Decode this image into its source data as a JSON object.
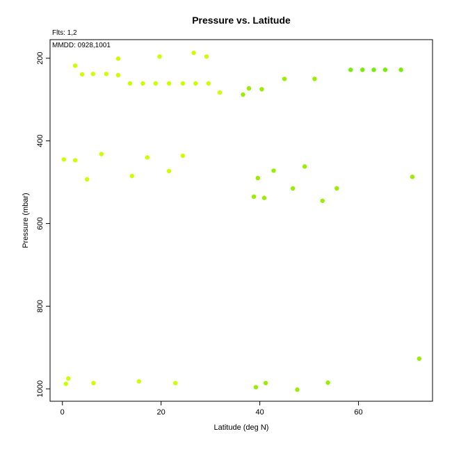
{
  "chart_data": {
    "type": "scatter",
    "title": "Pressure vs. Latitude",
    "xlabel": "Latitude (deg N)",
    "ylabel": "Pressure (mbar)",
    "annotations": [
      "Flts: 1,2",
      "MMDD: 0928,1001"
    ],
    "xlim": [
      -2.5,
      75
    ],
    "ylim": [
      1030,
      155
    ],
    "y_inverted": true,
    "x_ticks": [
      0,
      20,
      40,
      60
    ],
    "y_ticks": [
      200,
      400,
      600,
      800,
      1000
    ],
    "grid": false,
    "colors": {
      "yellow": "#ccff00",
      "lime": "#99ee00",
      "green": "#77ee00"
    },
    "points": [
      {
        "x": 0.3,
        "y": 445,
        "c": "yellow"
      },
      {
        "x": 2.6,
        "y": 447,
        "c": "yellow"
      },
      {
        "x": 5.0,
        "y": 493,
        "c": "yellow"
      },
      {
        "x": 7.9,
        "y": 432,
        "c": "yellow"
      },
      {
        "x": 14.1,
        "y": 485,
        "c": "yellow"
      },
      {
        "x": 17.2,
        "y": 440,
        "c": "yellow"
      },
      {
        "x": 21.6,
        "y": 473,
        "c": "yellow"
      },
      {
        "x": 24.4,
        "y": 436,
        "c": "yellow"
      },
      {
        "x": 2.6,
        "y": 218,
        "c": "yellow"
      },
      {
        "x": 4.0,
        "y": 239,
        "c": "yellow"
      },
      {
        "x": 6.2,
        "y": 238,
        "c": "yellow"
      },
      {
        "x": 8.9,
        "y": 238,
        "c": "yellow"
      },
      {
        "x": 11.3,
        "y": 201,
        "c": "yellow"
      },
      {
        "x": 11.3,
        "y": 241,
        "c": "yellow"
      },
      {
        "x": 13.7,
        "y": 261,
        "c": "yellow"
      },
      {
        "x": 16.3,
        "y": 261,
        "c": "yellow"
      },
      {
        "x": 18.9,
        "y": 261,
        "c": "yellow"
      },
      {
        "x": 19.7,
        "y": 196,
        "c": "yellow"
      },
      {
        "x": 21.6,
        "y": 261,
        "c": "yellow"
      },
      {
        "x": 24.4,
        "y": 261,
        "c": "yellow"
      },
      {
        "x": 26.6,
        "y": 187,
        "c": "yellow"
      },
      {
        "x": 27.0,
        "y": 261,
        "c": "yellow"
      },
      {
        "x": 29.2,
        "y": 196,
        "c": "yellow"
      },
      {
        "x": 29.6,
        "y": 261,
        "c": "yellow"
      },
      {
        "x": 31.9,
        "y": 283,
        "c": "yellow"
      },
      {
        "x": 0.7,
        "y": 988,
        "c": "yellow"
      },
      {
        "x": 1.2,
        "y": 975,
        "c": "yellow"
      },
      {
        "x": 6.3,
        "y": 986,
        "c": "yellow"
      },
      {
        "x": 15.5,
        "y": 982,
        "c": "yellow"
      },
      {
        "x": 22.9,
        "y": 986,
        "c": "yellow"
      },
      {
        "x": 36.6,
        "y": 288,
        "c": "lime"
      },
      {
        "x": 37.8,
        "y": 273,
        "c": "lime"
      },
      {
        "x": 40.4,
        "y": 275,
        "c": "lime"
      },
      {
        "x": 45.0,
        "y": 250,
        "c": "lime"
      },
      {
        "x": 51.1,
        "y": 250,
        "c": "lime"
      },
      {
        "x": 38.8,
        "y": 535,
        "c": "lime"
      },
      {
        "x": 39.6,
        "y": 490,
        "c": "lime"
      },
      {
        "x": 40.9,
        "y": 538,
        "c": "lime"
      },
      {
        "x": 42.8,
        "y": 472,
        "c": "lime"
      },
      {
        "x": 46.7,
        "y": 515,
        "c": "lime"
      },
      {
        "x": 49.1,
        "y": 462,
        "c": "lime"
      },
      {
        "x": 52.7,
        "y": 545,
        "c": "lime"
      },
      {
        "x": 55.6,
        "y": 515,
        "c": "lime"
      },
      {
        "x": 70.9,
        "y": 487,
        "c": "lime"
      },
      {
        "x": 39.2,
        "y": 996,
        "c": "lime"
      },
      {
        "x": 41.2,
        "y": 986,
        "c": "lime"
      },
      {
        "x": 47.6,
        "y": 1002,
        "c": "lime"
      },
      {
        "x": 53.8,
        "y": 985,
        "c": "lime"
      },
      {
        "x": 72.3,
        "y": 927,
        "c": "lime"
      },
      {
        "x": 58.4,
        "y": 228,
        "c": "green"
      },
      {
        "x": 60.8,
        "y": 228,
        "c": "green"
      },
      {
        "x": 63.1,
        "y": 228,
        "c": "green"
      },
      {
        "x": 65.4,
        "y": 228,
        "c": "green"
      },
      {
        "x": 68.6,
        "y": 228,
        "c": "green"
      }
    ]
  }
}
